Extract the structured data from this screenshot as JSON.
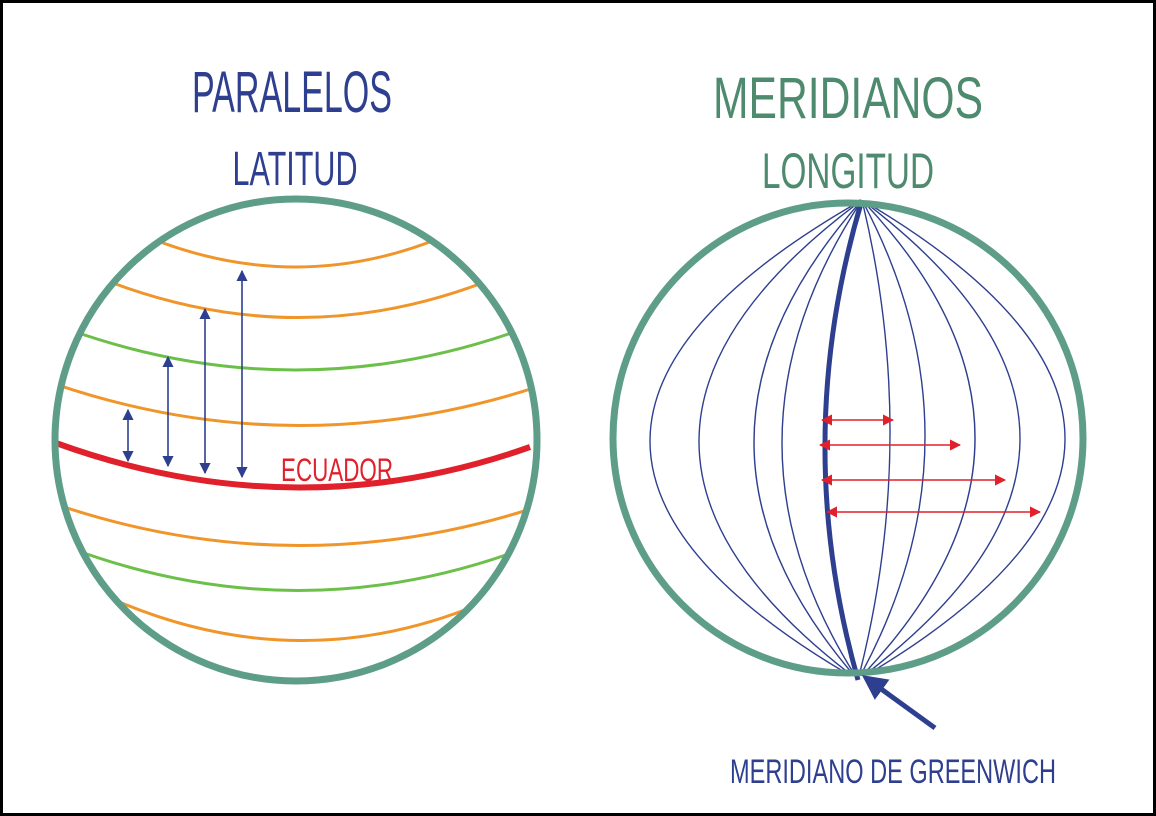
{
  "left": {
    "title": "PARALELOS",
    "subtitle": "LATITUD",
    "equator_label": "ECUADOR"
  },
  "right": {
    "title": "MERIDIANOS",
    "subtitle": "LONGITUD",
    "greenwich_label": "MERIDIANO DE GREENWICH"
  }
}
